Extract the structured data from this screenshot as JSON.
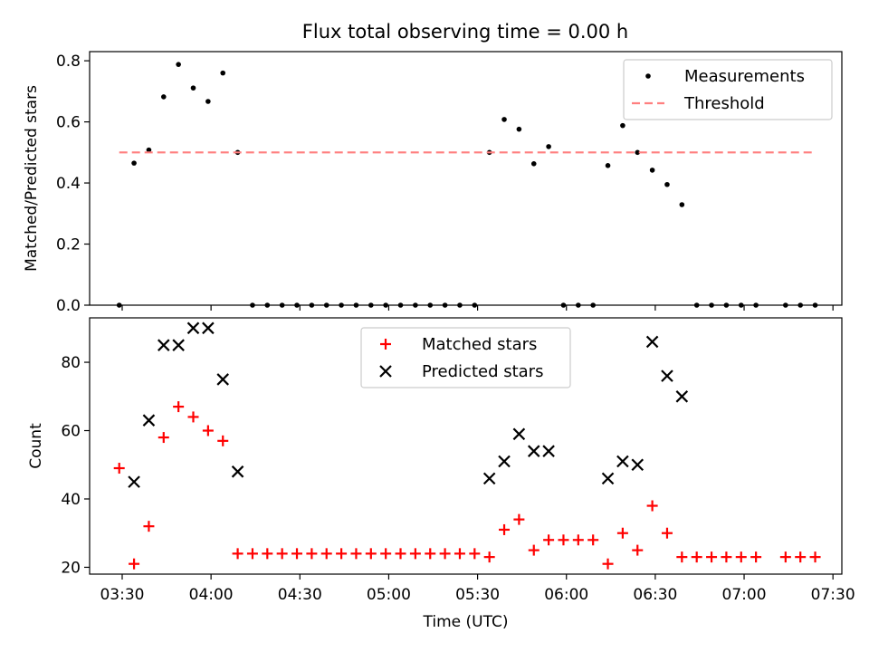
{
  "chart_data": [
    {
      "type": "scatter",
      "title": "Flux total observing time = 0.00 h",
      "xlabel": "",
      "ylabel": "Matched/Predicted stars",
      "xlim": [
        "03:19",
        "07:33"
      ],
      "ylim": [
        0,
        0.83
      ],
      "yticks": [
        0.0,
        0.2,
        0.4,
        0.6,
        0.8
      ],
      "ytick_labels": [
        "0.0",
        "0.2",
        "0.4",
        "0.6",
        "0.8"
      ],
      "legend_position": "top-right",
      "series": [
        {
          "name": "Measurements",
          "marker": "dot",
          "color": "#000000",
          "points": [
            [
              "03:29",
              0.0
            ],
            [
              "03:34",
              0.465
            ],
            [
              "03:39",
              0.508
            ],
            [
              "03:44",
              0.682
            ],
            [
              "03:49",
              0.788
            ],
            [
              "03:54",
              0.711
            ],
            [
              "03:59",
              0.667
            ],
            [
              "04:04",
              0.76
            ],
            [
              "04:09",
              0.5
            ],
            [
              "04:14",
              0.0
            ],
            [
              "04:19",
              0.0
            ],
            [
              "04:24",
              0.0
            ],
            [
              "04:29",
              0.0
            ],
            [
              "04:34",
              0.0
            ],
            [
              "04:39",
              0.0
            ],
            [
              "04:44",
              0.0
            ],
            [
              "04:49",
              0.0
            ],
            [
              "04:54",
              0.0
            ],
            [
              "04:59",
              0.0
            ],
            [
              "05:04",
              0.0
            ],
            [
              "05:09",
              0.0
            ],
            [
              "05:14",
              0.0
            ],
            [
              "05:19",
              0.0
            ],
            [
              "05:24",
              0.0
            ],
            [
              "05:29",
              0.0
            ],
            [
              "05:34",
              0.5
            ],
            [
              "05:39",
              0.608
            ],
            [
              "05:44",
              0.576
            ],
            [
              "05:49",
              0.463
            ],
            [
              "05:54",
              0.519
            ],
            [
              "05:59",
              0.0
            ],
            [
              "06:04",
              0.0
            ],
            [
              "06:09",
              0.0
            ],
            [
              "06:14",
              0.457
            ],
            [
              "06:19",
              0.588
            ],
            [
              "06:24",
              0.5
            ],
            [
              "06:29",
              0.442
            ],
            [
              "06:34",
              0.395
            ],
            [
              "06:39",
              0.329
            ],
            [
              "06:44",
              0.0
            ],
            [
              "06:49",
              0.0
            ],
            [
              "06:54",
              0.0
            ],
            [
              "06:59",
              0.0
            ],
            [
              "07:04",
              0.0
            ],
            [
              "07:14",
              0.0
            ],
            [
              "07:19",
              0.0
            ],
            [
              "07:24",
              0.0
            ]
          ]
        },
        {
          "name": "Threshold",
          "type": "line",
          "style": "dashed",
          "color": "#ff7f7f",
          "points": [
            [
              "03:29",
              0.5
            ],
            [
              "07:24",
              0.5
            ]
          ]
        }
      ]
    },
    {
      "type": "scatter",
      "title": "",
      "xlabel": "Time (UTC)",
      "ylabel": "Count",
      "xlim": [
        "03:19",
        "07:33"
      ],
      "ylim": [
        18,
        93
      ],
      "yticks": [
        20,
        40,
        60,
        80
      ],
      "ytick_labels": [
        "20",
        "40",
        "60",
        "80"
      ],
      "xticks": [
        "03:30",
        "04:00",
        "04:30",
        "05:00",
        "05:30",
        "06:00",
        "06:30",
        "07:00",
        "07:30"
      ],
      "xtick_labels": [
        "03:30",
        "04:00",
        "04:30",
        "05:00",
        "05:30",
        "06:00",
        "06:30",
        "07:00",
        "07:30"
      ],
      "legend_position": "top-center",
      "series": [
        {
          "name": "Matched stars",
          "marker": "plus",
          "color": "#ff0000",
          "points": [
            [
              "03:29",
              49
            ],
            [
              "03:34",
              21
            ],
            [
              "03:39",
              32
            ],
            [
              "03:44",
              58
            ],
            [
              "03:49",
              67
            ],
            [
              "03:54",
              64
            ],
            [
              "03:59",
              60
            ],
            [
              "04:04",
              57
            ],
            [
              "04:09",
              24
            ],
            [
              "04:14",
              24
            ],
            [
              "04:19",
              24
            ],
            [
              "04:24",
              24
            ],
            [
              "04:29",
              24
            ],
            [
              "04:34",
              24
            ],
            [
              "04:39",
              24
            ],
            [
              "04:44",
              24
            ],
            [
              "04:49",
              24
            ],
            [
              "04:54",
              24
            ],
            [
              "04:59",
              24
            ],
            [
              "05:04",
              24
            ],
            [
              "05:09",
              24
            ],
            [
              "05:14",
              24
            ],
            [
              "05:19",
              24
            ],
            [
              "05:24",
              24
            ],
            [
              "05:29",
              24
            ],
            [
              "05:34",
              23
            ],
            [
              "05:39",
              31
            ],
            [
              "05:44",
              34
            ],
            [
              "05:49",
              25
            ],
            [
              "05:54",
              28
            ],
            [
              "05:59",
              28
            ],
            [
              "06:04",
              28
            ],
            [
              "06:09",
              28
            ],
            [
              "06:14",
              21
            ],
            [
              "06:19",
              30
            ],
            [
              "06:24",
              25
            ],
            [
              "06:29",
              38
            ],
            [
              "06:34",
              30
            ],
            [
              "06:39",
              23
            ],
            [
              "06:44",
              23
            ],
            [
              "06:49",
              23
            ],
            [
              "06:54",
              23
            ],
            [
              "06:59",
              23
            ],
            [
              "07:04",
              23
            ],
            [
              "07:14",
              23
            ],
            [
              "07:19",
              23
            ],
            [
              "07:24",
              23
            ]
          ]
        },
        {
          "name": "Predicted stars",
          "marker": "x",
          "color": "#000000",
          "points": [
            [
              "03:34",
              45
            ],
            [
              "03:39",
              63
            ],
            [
              "03:44",
              85
            ],
            [
              "03:49",
              85
            ],
            [
              "03:54",
              90
            ],
            [
              "03:59",
              90
            ],
            [
              "04:04",
              75
            ],
            [
              "04:09",
              48
            ],
            [
              "05:34",
              46
            ],
            [
              "05:39",
              51
            ],
            [
              "05:44",
              59
            ],
            [
              "05:49",
              54
            ],
            [
              "05:54",
              54
            ],
            [
              "06:14",
              46
            ],
            [
              "06:19",
              51
            ],
            [
              "06:24",
              50
            ],
            [
              "06:29",
              86
            ],
            [
              "06:34",
              76
            ],
            [
              "06:39",
              70
            ]
          ]
        }
      ]
    }
  ]
}
